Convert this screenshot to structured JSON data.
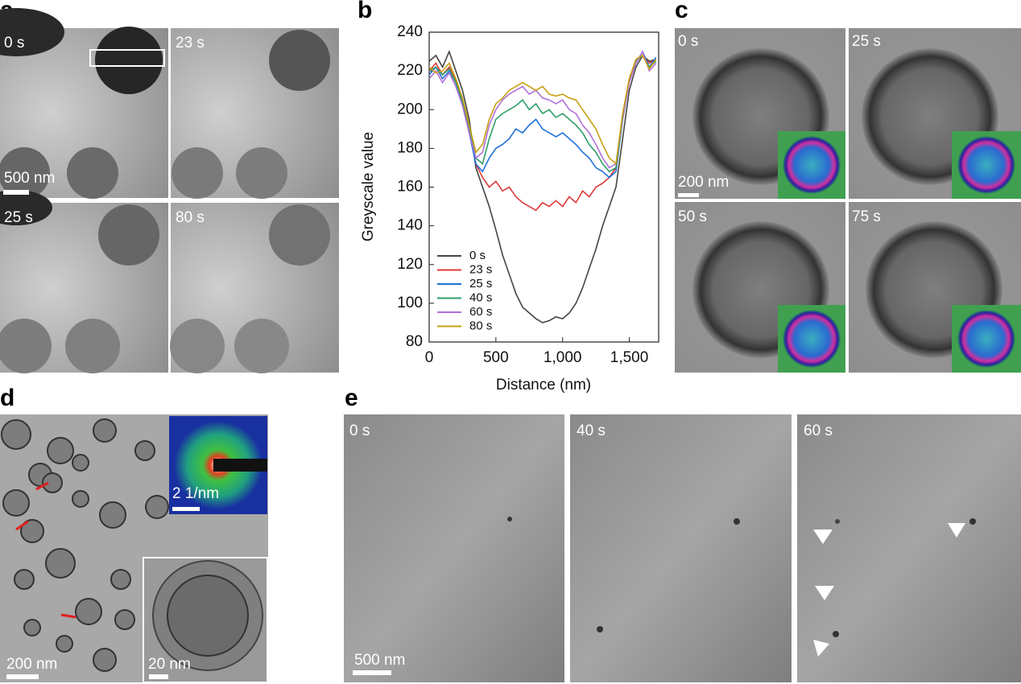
{
  "panel_a": {
    "letter": "a",
    "labels": [
      "0 s",
      "23 s",
      "25 s",
      "80 s"
    ],
    "scale_bar": "500 nm"
  },
  "panel_b": {
    "letter": "b"
  },
  "panel_c": {
    "letter": "c",
    "labels": [
      "0 s",
      "25 s",
      "50 s",
      "75 s"
    ],
    "scale_bar": "200 nm"
  },
  "panel_d": {
    "letter": "d",
    "scale_bar": "200 nm",
    "inset_scale": "2 1/nm",
    "inset_scale_2": "20 nm"
  },
  "panel_e": {
    "letter": "e",
    "labels": [
      "0 s",
      "40 s",
      "60 s"
    ],
    "scale_bar": "500 nm"
  },
  "chart_data": {
    "type": "line",
    "x_label": "Distance (nm)",
    "y_label": "Greyscale value",
    "xlim": [
      0,
      1720
    ],
    "ylim": [
      80,
      240
    ],
    "xticks": [
      0,
      500,
      {
        "value": 1000,
        "label": "1,000"
      },
      {
        "value": 1500,
        "label": "1,500"
      }
    ],
    "yticks": [
      80,
      100,
      120,
      140,
      160,
      180,
      200,
      220,
      240
    ],
    "legend": "lower left",
    "x": [
      0,
      50,
      100,
      150,
      200,
      250,
      300,
      350,
      400,
      450,
      500,
      550,
      600,
      650,
      700,
      750,
      800,
      850,
      900,
      950,
      1000,
      1050,
      1100,
      1150,
      1200,
      1250,
      1300,
      1350,
      1400,
      1450,
      1500,
      1550,
      1600,
      1650,
      1700
    ],
    "series": [
      {
        "name": "0 s",
        "color": "#444444",
        "values": [
          225,
          228,
          222,
          230,
          220,
          210,
          195,
          170,
          160,
          150,
          138,
          125,
          115,
          105,
          98,
          95,
          92,
          90,
          91,
          93,
          92,
          95,
          100,
          108,
          118,
          128,
          140,
          150,
          160,
          185,
          210,
          222,
          228,
          225,
          226
        ]
      },
      {
        "name": "23 s",
        "color": "#e03a3a",
        "values": [
          220,
          224,
          218,
          222,
          215,
          205,
          190,
          172,
          165,
          160,
          163,
          158,
          160,
          155,
          152,
          150,
          148,
          152,
          150,
          153,
          150,
          155,
          152,
          158,
          155,
          160,
          162,
          165,
          170,
          195,
          215,
          225,
          228,
          224,
          226
        ]
      },
      {
        "name": "25 s",
        "color": "#2070d8",
        "values": [
          218,
          222,
          216,
          220,
          214,
          203,
          188,
          172,
          168,
          175,
          180,
          182,
          185,
          190,
          188,
          192,
          195,
          190,
          188,
          186,
          188,
          185,
          182,
          178,
          175,
          170,
          168,
          165,
          168,
          195,
          215,
          224,
          230,
          222,
          227
        ]
      },
      {
        "name": "40 s",
        "color": "#2e9e6a",
        "values": [
          220,
          222,
          218,
          221,
          214,
          204,
          190,
          175,
          172,
          185,
          195,
          198,
          200,
          202,
          205,
          200,
          203,
          198,
          200,
          196,
          198,
          195,
          192,
          188,
          182,
          178,
          172,
          168,
          170,
          195,
          215,
          225,
          228,
          222,
          225
        ]
      },
      {
        "name": "60 s",
        "color": "#b070d8",
        "values": [
          216,
          220,
          214,
          219,
          212,
          202,
          188,
          175,
          178,
          192,
          200,
          205,
          208,
          210,
          212,
          208,
          210,
          206,
          205,
          203,
          205,
          200,
          198,
          192,
          188,
          182,
          175,
          170,
          172,
          196,
          214,
          224,
          230,
          220,
          224
        ]
      },
      {
        "name": "80 s",
        "color": "#c9a012",
        "values": [
          222,
          219,
          220,
          224,
          216,
          206,
          192,
          178,
          182,
          195,
          203,
          206,
          210,
          212,
          214,
          212,
          210,
          212,
          208,
          207,
          208,
          206,
          205,
          200,
          195,
          190,
          182,
          175,
          172,
          198,
          216,
          226,
          228,
          221,
          226
        ]
      }
    ]
  }
}
